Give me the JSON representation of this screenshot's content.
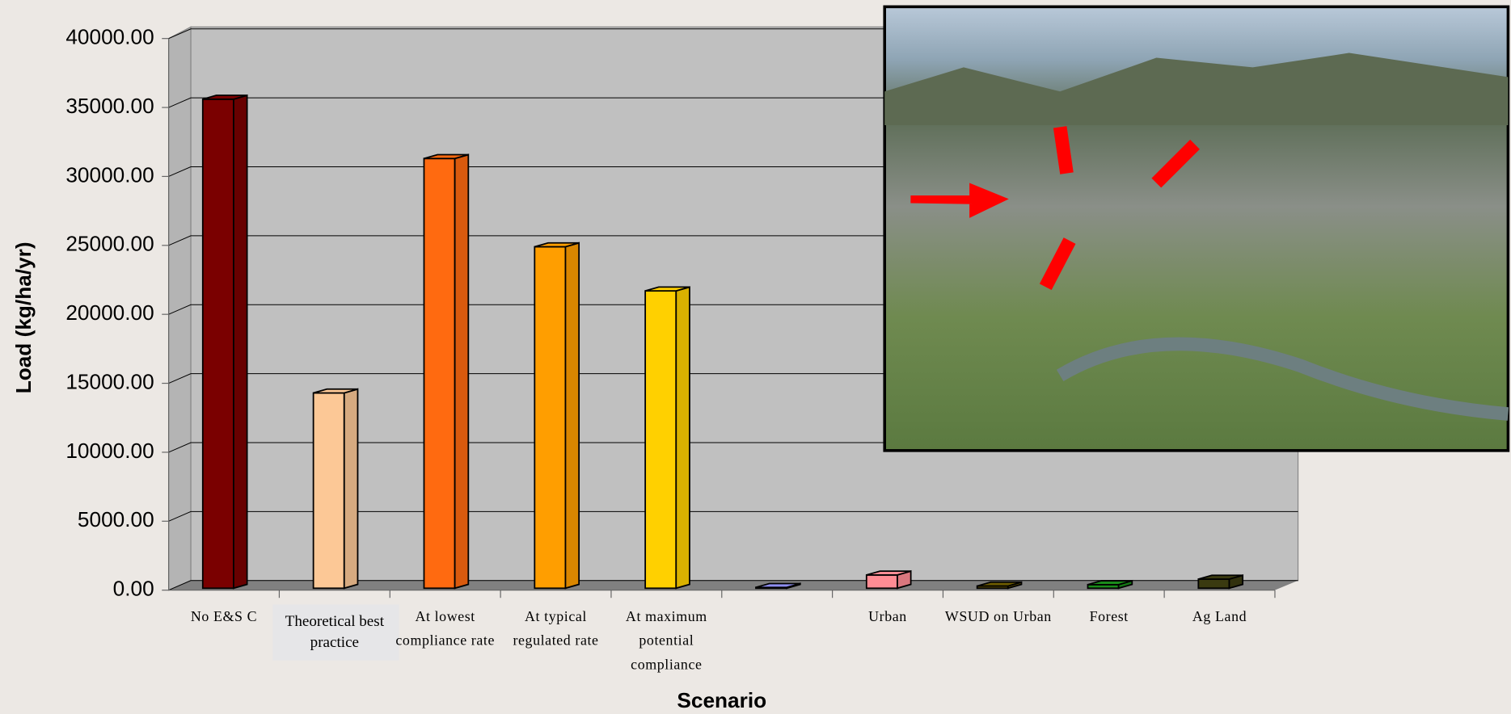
{
  "chart_data": {
    "type": "bar3d",
    "x_label": "Scenario",
    "y_label": "Load (kg/ha/yr)",
    "categories": [
      "No E&S C",
      "Theoretical best practice",
      "At lowest compliance rate",
      "At typical regulated rate",
      "At maximum potential compliance",
      null,
      "Urban",
      "WSUD on Urban",
      "Forest",
      "Ag Land"
    ],
    "values": [
      35600,
      14300,
      31300,
      24900,
      21700,
      200,
      1100,
      300,
      400,
      800
    ],
    "colors": [
      "#7a0000",
      "#fcc896",
      "#ff6a10",
      "#ff9e00",
      "#ffd000",
      "#8e8ef0",
      "#ff8c94",
      "#6b5a00",
      "#1a8c1a",
      "#3a3a10"
    ],
    "ylim": [
      0,
      40000
    ],
    "yticks": [
      {
        "value": 0,
        "label": "0.00"
      },
      {
        "value": 5000,
        "label": "5000.00"
      },
      {
        "value": 10000,
        "label": "10000.00"
      },
      {
        "value": 15000,
        "label": "15000.00"
      },
      {
        "value": 20000,
        "label": "20000.00"
      },
      {
        "value": 25000,
        "label": "25000.00"
      },
      {
        "value": 30000,
        "label": "30000.00"
      },
      {
        "value": 35000,
        "label": "35000.00"
      },
      {
        "value": 40000,
        "label": "40000.00"
      }
    ],
    "grid": true
  }
}
